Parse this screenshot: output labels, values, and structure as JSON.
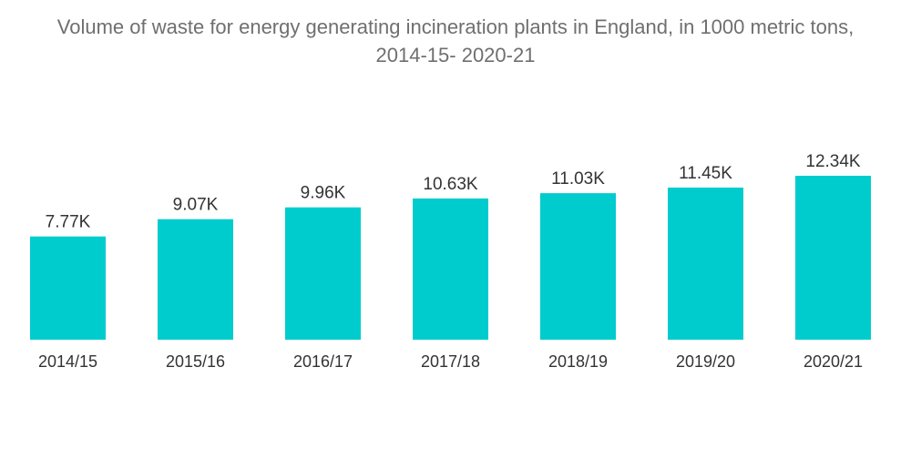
{
  "chart_data": {
    "type": "bar",
    "title_line1": "Volume of waste for energy generating incineration plants in England, in 1000 metric tons,",
    "title_line2": "2014-15- 2020-21",
    "categories": [
      "2014/15",
      "2015/16",
      "2016/17",
      "2017/18",
      "2018/19",
      "2019/20",
      "2020/21"
    ],
    "values": [
      7.77,
      9.07,
      9.96,
      10.63,
      11.03,
      11.45,
      12.34
    ],
    "data_labels": [
      "7.77K",
      "9.07K",
      "9.96K",
      "10.63K",
      "11.03K",
      "11.45K",
      "12.34K"
    ],
    "xlabel": "",
    "ylabel": "",
    "ylim": [
      0,
      12.34
    ],
    "grid": false,
    "legend": "none",
    "bar_color": "#00cccd"
  }
}
